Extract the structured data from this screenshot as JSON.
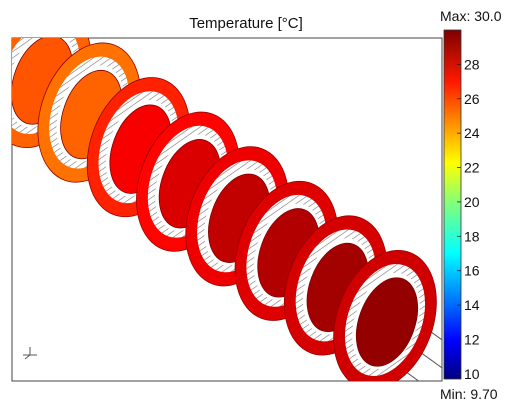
{
  "chart_data": {
    "type": "heatmap",
    "title": "Temperature [°C]",
    "colorbar": {
      "max_label": "Max: 30.0",
      "min_label": "Min: 9.70",
      "range": [
        9.7,
        30.0
      ],
      "ticks": [
        28,
        26,
        24,
        22,
        20,
        18,
        16,
        14,
        12,
        10
      ],
      "colormap": "jet"
    },
    "disks": [
      {
        "index": 1,
        "outer_temp": 25.5,
        "inner_temp": 25.8
      },
      {
        "index": 2,
        "outer_temp": 25.2,
        "inner_temp": 25.5
      },
      {
        "index": 3,
        "outer_temp": 26.8,
        "inner_temp": 27.6
      },
      {
        "index": 4,
        "outer_temp": 27.4,
        "inner_temp": 28.2
      },
      {
        "index": 5,
        "outer_temp": 27.8,
        "inner_temp": 28.7
      },
      {
        "index": 6,
        "outer_temp": 28.1,
        "inner_temp": 29.0
      },
      {
        "index": 7,
        "outer_temp": 28.3,
        "inner_temp": 29.3
      },
      {
        "index": 8,
        "outer_temp": 28.4,
        "inner_temp": 29.6
      }
    ]
  },
  "colors": {
    "ring_stripes": "#8a8a8a",
    "gap": "#ffffff",
    "frame": "#444444"
  }
}
